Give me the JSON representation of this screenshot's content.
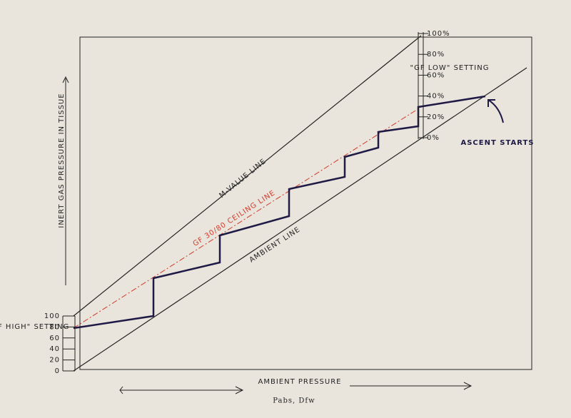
{
  "diagram": {
    "y_axis_label": "INERT GAS PRESSURE IN TISSUE",
    "gf_high_label": "\"GF HIGH\" SETTING",
    "left_scale": [
      "100",
      "80",
      "60",
      "40",
      "20",
      "0"
    ],
    "right_scale": [
      "100%",
      "80%",
      "60%",
      "40%",
      "20%",
      "0%"
    ],
    "gf_low_label": "\"GF LOW\" SETTING",
    "m_value_label": "M-VALUE LINE",
    "ceiling_label": "GF 30/80 CEILING LINE",
    "ambient_line_label": "AMBIENT LINE",
    "ascent_label": "ASCENT STARTS",
    "x_axis_label": "AMBIENT PRESSURE",
    "x_axis_sub": "Pabs, Dfw"
  }
}
